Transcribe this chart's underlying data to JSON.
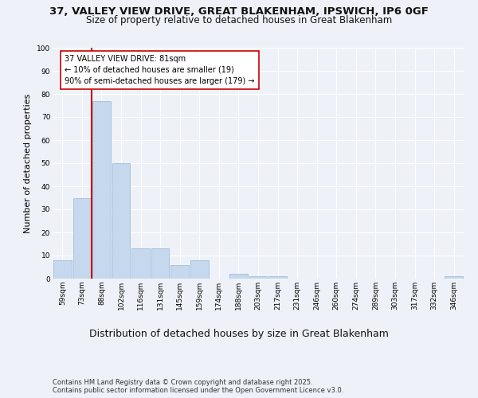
{
  "title1": "37, VALLEY VIEW DRIVE, GREAT BLAKENHAM, IPSWICH, IP6 0GF",
  "title2": "Size of property relative to detached houses in Great Blakenham",
  "xlabel": "Distribution of detached houses by size in Great Blakenham",
  "ylabel": "Number of detached properties",
  "categories": [
    "59sqm",
    "73sqm",
    "88sqm",
    "102sqm",
    "116sqm",
    "131sqm",
    "145sqm",
    "159sqm",
    "174sqm",
    "188sqm",
    "203sqm",
    "217sqm",
    "231sqm",
    "246sqm",
    "260sqm",
    "274sqm",
    "289sqm",
    "303sqm",
    "317sqm",
    "332sqm",
    "346sqm"
  ],
  "values": [
    8,
    35,
    77,
    50,
    13,
    13,
    6,
    8,
    0,
    2,
    1,
    1,
    0,
    0,
    0,
    0,
    0,
    0,
    0,
    0,
    1
  ],
  "bar_color": "#c5d8ed",
  "bar_edge_color": "#a0bdd8",
  "vline_x_index": 1.5,
  "vline_color": "#cc0000",
  "annotation_text": "37 VALLEY VIEW DRIVE: 81sqm\n← 10% of detached houses are smaller (19)\n90% of semi-detached houses are larger (179) →",
  "annotation_box_color": "#ffffff",
  "annotation_box_edge": "#cc0000",
  "ylim": [
    0,
    100
  ],
  "yticks": [
    0,
    10,
    20,
    30,
    40,
    50,
    60,
    70,
    80,
    90,
    100
  ],
  "footnote": "Contains HM Land Registry data © Crown copyright and database right 2025.\nContains public sector information licensed under the Open Government Licence v3.0.",
  "bg_color": "#eef2f8",
  "grid_color": "#ffffff",
  "title_fontsize": 9.5,
  "subtitle_fontsize": 8.5,
  "ylabel_fontsize": 8,
  "xlabel_fontsize": 9,
  "tick_fontsize": 6.5,
  "annot_fontsize": 7,
  "footnote_fontsize": 6
}
